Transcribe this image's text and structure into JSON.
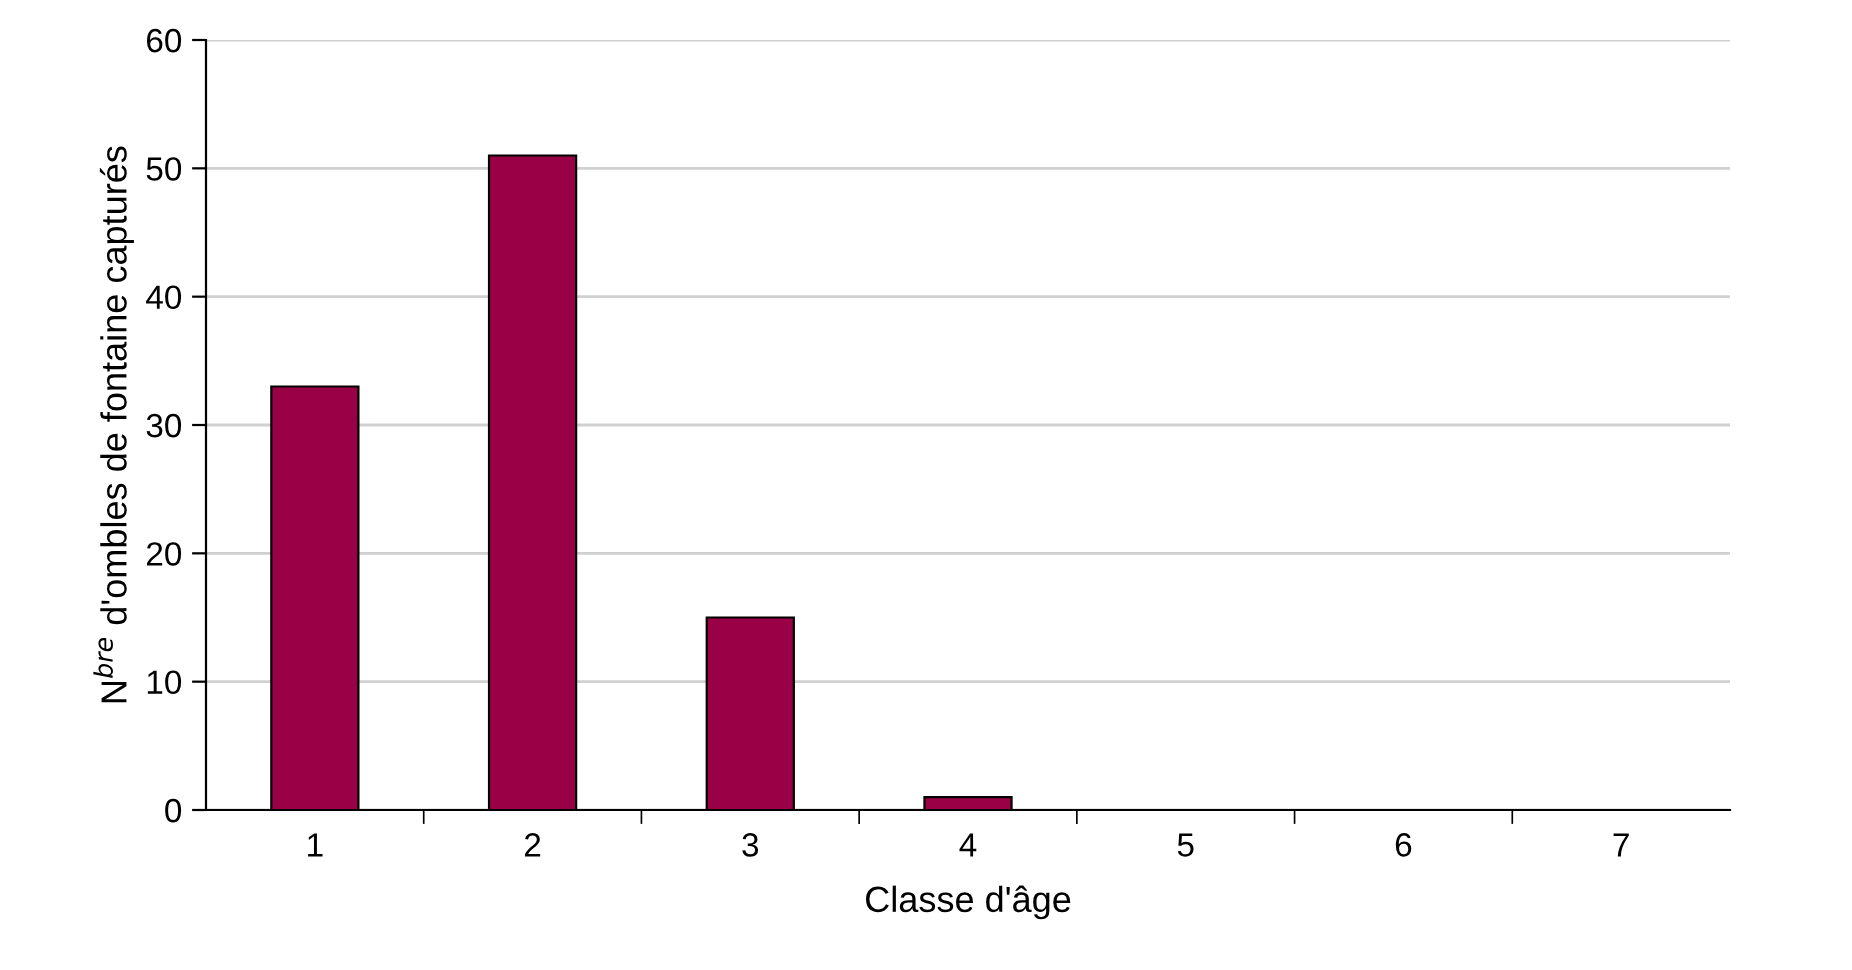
{
  "chart_data": {
    "type": "bar",
    "xlabel": "Classe d'âge",
    "ylabel": "N$^{bre}$ d'ombles de fontaine capturés",
    "categories": [
      "1",
      "2",
      "3",
      "4",
      "5",
      "6",
      "7"
    ],
    "values": [
      33,
      51,
      15,
      1,
      0,
      0,
      0
    ],
    "color": "#990045",
    "ylim": [
      0,
      60
    ],
    "yticks": [
      0,
      10,
      20,
      30,
      40,
      50,
      60
    ],
    "grid": "y",
    "legend": false
  }
}
